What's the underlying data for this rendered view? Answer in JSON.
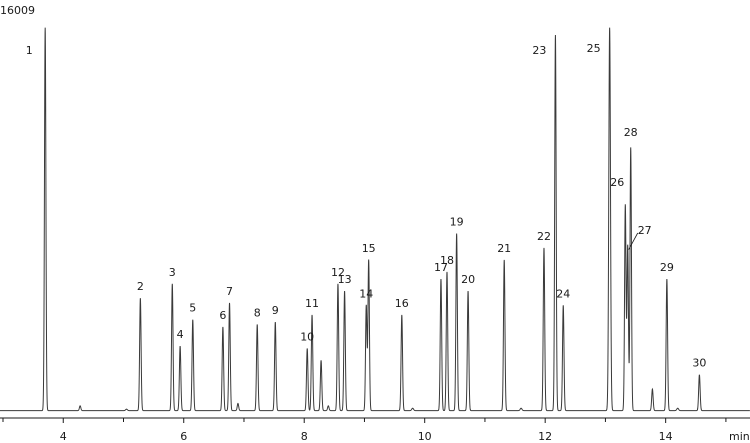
{
  "chart_data": {
    "type": "line",
    "title": "",
    "xlabel": "min",
    "ylabel": "",
    "y_max_label": "16009",
    "xlim": [
      2.95,
      15.4
    ],
    "ylim": [
      0,
      16009
    ],
    "x_ticks": [
      4,
      6,
      8,
      10,
      12,
      14
    ],
    "x_minor_ticks": [
      3,
      5,
      7,
      9,
      11,
      13,
      15
    ],
    "grid": false,
    "line_color": "#3a3a3a",
    "baseline": 100,
    "peaks": [
      {
        "label": "1",
        "rt": 3.7,
        "height": 16009,
        "width": 0.012
      },
      {
        "label": "2",
        "rt": 5.28,
        "height": 4700,
        "width": 0.012
      },
      {
        "label": "3",
        "rt": 5.81,
        "height": 5300,
        "width": 0.012
      },
      {
        "label": "4",
        "rt": 5.94,
        "height": 2700,
        "width": 0.012
      },
      {
        "label": "5",
        "rt": 6.15,
        "height": 3800,
        "width": 0.012
      },
      {
        "label": "6",
        "rt": 6.65,
        "height": 3500,
        "width": 0.012
      },
      {
        "label": "7",
        "rt": 6.76,
        "height": 4500,
        "width": 0.012
      },
      {
        "label": "8",
        "rt": 7.22,
        "height": 3600,
        "width": 0.012
      },
      {
        "label": "9",
        "rt": 7.52,
        "height": 3700,
        "width": 0.012
      },
      {
        "label": "10",
        "rt": 8.05,
        "height": 2600,
        "width": 0.012
      },
      {
        "label": "11",
        "rt": 8.13,
        "height": 4000,
        "width": 0.012
      },
      {
        "label": "12",
        "rt": 8.56,
        "height": 5300,
        "width": 0.012
      },
      {
        "label": "13",
        "rt": 8.67,
        "height": 5000,
        "width": 0.012
      },
      {
        "label": "14",
        "rt": 9.03,
        "height": 4400,
        "width": 0.012
      },
      {
        "label": "15",
        "rt": 9.07,
        "height": 6300,
        "width": 0.012
      },
      {
        "label": "16",
        "rt": 9.62,
        "height": 4000,
        "width": 0.012
      },
      {
        "label": "17",
        "rt": 10.27,
        "height": 5500,
        "width": 0.012
      },
      {
        "label": "18",
        "rt": 10.37,
        "height": 5800,
        "width": 0.012
      },
      {
        "label": "19",
        "rt": 10.53,
        "height": 7400,
        "width": 0.012
      },
      {
        "label": "20",
        "rt": 10.72,
        "height": 5000,
        "width": 0.012
      },
      {
        "label": "21",
        "rt": 11.32,
        "height": 6300,
        "width": 0.012
      },
      {
        "label": "22",
        "rt": 11.98,
        "height": 6800,
        "width": 0.012
      },
      {
        "label": "23",
        "rt": 12.17,
        "height": 15700,
        "width": 0.012
      },
      {
        "label": "24",
        "rt": 12.3,
        "height": 4400,
        "width": 0.012
      },
      {
        "label": "25",
        "rt": 13.07,
        "height": 16009,
        "width": 0.014
      },
      {
        "label": "26",
        "rt": 13.33,
        "height": 8600,
        "width": 0.012
      },
      {
        "label": "27",
        "rt": 13.37,
        "height": 6900,
        "width": 0.012
      },
      {
        "label": "28",
        "rt": 13.42,
        "height": 11000,
        "width": 0.012
      },
      {
        "label": "29",
        "rt": 14.02,
        "height": 5500,
        "width": 0.012
      },
      {
        "label": "30",
        "rt": 14.56,
        "height": 1500,
        "width": 0.012
      }
    ],
    "minor_peaks": [
      {
        "rt": 4.28,
        "height": 200,
        "width": 0.012
      },
      {
        "rt": 5.05,
        "height": 60,
        "width": 0.015
      },
      {
        "rt": 6.9,
        "height": 300,
        "width": 0.012
      },
      {
        "rt": 8.28,
        "height": 2100,
        "width": 0.012
      },
      {
        "rt": 8.4,
        "height": 200,
        "width": 0.012
      },
      {
        "rt": 9.8,
        "height": 100,
        "width": 0.015
      },
      {
        "rt": 11.6,
        "height": 100,
        "width": 0.015
      },
      {
        "rt": 13.78,
        "height": 900,
        "width": 0.012
      },
      {
        "rt": 14.2,
        "height": 100,
        "width": 0.015
      }
    ]
  }
}
